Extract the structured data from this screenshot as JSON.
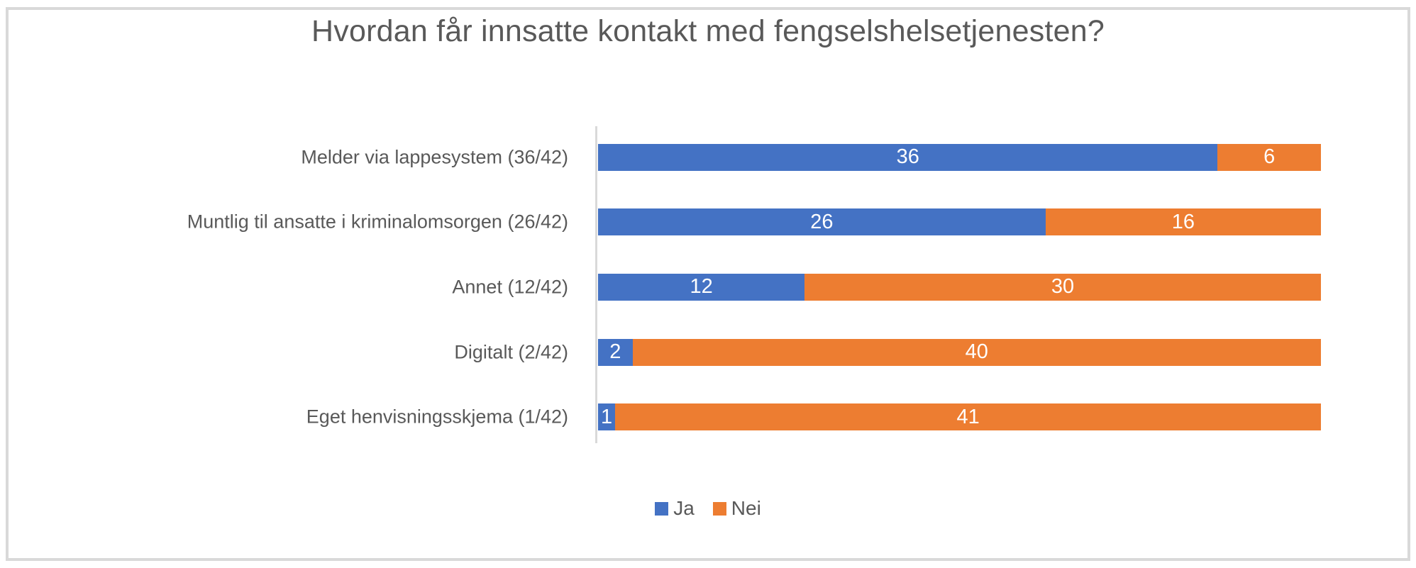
{
  "chart_data": {
    "type": "bar",
    "orientation": "horizontal",
    "stacked": true,
    "title": "Hvordan får innsatte kontakt med fengselshelsetjenesten?",
    "categories": [
      "Melder via lappesystem (36/42)",
      "Muntlig til ansatte i kriminalomsorgen (26/42)",
      "Annet (12/42)",
      "Digitalt (2/42)",
      "Eget henvisningsskjema (1/42)"
    ],
    "series": [
      {
        "name": "Ja",
        "color": "#4472C4",
        "values": [
          36,
          26,
          12,
          2,
          1
        ]
      },
      {
        "name": "Nei",
        "color": "#ED7D31",
        "values": [
          6,
          16,
          30,
          40,
          41
        ]
      }
    ],
    "x_max": 42,
    "grid": false,
    "legend_position": "bottom",
    "data_label_color": "#FFFFFF"
  },
  "colors": {
    "title_text": "#595959",
    "category_text": "#595959",
    "legend_text": "#595959",
    "axis_line": "#D9D9D9",
    "frame_border": "#D9D9D9",
    "background": "#FFFFFF"
  }
}
